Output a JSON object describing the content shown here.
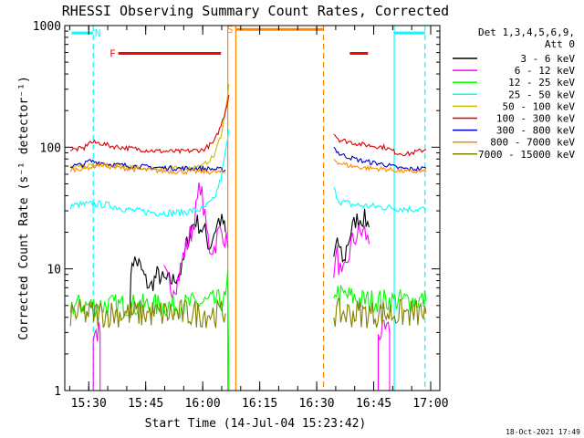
{
  "chart_data": {
    "type": "line",
    "title": "RHESSI Observing Summary Count Rates, Corrected",
    "xlabel": "Start Time (14-Jul-04 15:23:42)",
    "ylabel": "Corrected Count Rate (s⁻¹ detector⁻¹)",
    "yscale": "log",
    "ylim": [
      1,
      1000
    ],
    "xlim": [
      15.395,
      17.04
    ],
    "yticks": [
      {
        "v": 1,
        "label": "1"
      },
      {
        "v": 10,
        "label": "10"
      },
      {
        "v": 100,
        "label": "100"
      },
      {
        "v": 1000,
        "label": "1000"
      }
    ],
    "xticks": [
      {
        "v": 15.5,
        "label": "15:30"
      },
      {
        "v": 15.75,
        "label": "15:45"
      },
      {
        "v": 16.0,
        "label": "16:00"
      },
      {
        "v": 16.25,
        "label": "16:15"
      },
      {
        "v": 16.5,
        "label": "16:30"
      },
      {
        "v": 16.75,
        "label": "16:45"
      },
      {
        "v": 17.0,
        "label": "17:00"
      }
    ],
    "legend_header": [
      "Det 1,3,4,5,6,9,",
      "Att 0"
    ],
    "legend_position": "right",
    "timestamp": "18-Oct-2021 17:49",
    "series": [
      {
        "name": "3 - 6 keV",
        "color": "#000000",
        "segments": [
          [
            [
              15.68,
              5
            ],
            [
              15.69,
              12
            ],
            [
              15.72,
              11
            ],
            [
              15.75,
              8
            ],
            [
              15.77,
              7
            ],
            [
              15.8,
              9
            ],
            [
              15.83,
              8
            ],
            [
              15.87,
              8
            ],
            [
              15.89,
              9
            ],
            [
              15.91,
              10
            ],
            [
              15.93,
              16
            ],
            [
              15.95,
              22
            ],
            [
              15.97,
              25
            ],
            [
              15.99,
              22
            ],
            [
              16.01,
              20
            ],
            [
              16.03,
              15
            ],
            [
              16.05,
              20
            ],
            [
              16.07,
              25
            ],
            [
              16.09,
              24
            ],
            [
              16.1,
              20
            ]
          ],
          [
            [
              16.575,
              12
            ],
            [
              16.59,
              18
            ],
            [
              16.6,
              14
            ],
            [
              16.62,
              11
            ],
            [
              16.63,
              15
            ],
            [
              16.65,
              20
            ],
            [
              16.67,
              25
            ],
            [
              16.69,
              26
            ],
            [
              16.71,
              26
            ],
            [
              16.73,
              22
            ]
          ]
        ]
      },
      {
        "name": "6 - 12 keV",
        "color": "#ff00ff",
        "segments": [
          [
            [
              15.52,
              1
            ],
            [
              15.52,
              3
            ],
            [
              15.55,
              3
            ],
            [
              15.55,
              1
            ]
          ],
          [
            [
              15.83,
              9
            ],
            [
              15.86,
              7
            ],
            [
              15.89,
              8
            ],
            [
              15.92,
              14
            ],
            [
              15.95,
              20
            ],
            [
              15.97,
              30
            ],
            [
              15.99,
              50
            ],
            [
              16.01,
              25
            ],
            [
              16.03,
              15
            ],
            [
              16.05,
              15
            ],
            [
              16.07,
              20
            ],
            [
              16.09,
              20
            ],
            [
              16.11,
              15
            ]
          ],
          [
            [
              16.575,
              10
            ],
            [
              16.59,
              13
            ],
            [
              16.61,
              8
            ],
            [
              16.63,
              10
            ],
            [
              16.65,
              16
            ],
            [
              16.67,
              18
            ],
            [
              16.69,
              20
            ],
            [
              16.71,
              20
            ],
            [
              16.73,
              16
            ]
          ],
          [
            [
              16.77,
              1
            ],
            [
              16.77,
              3
            ],
            [
              16.82,
              3
            ],
            [
              16.82,
              1
            ]
          ]
        ]
      },
      {
        "name": "12 - 25 keV",
        "color": "#00ff00",
        "segments": [
          [
            [
              15.42,
              5
            ],
            [
              15.9,
              5
            ],
            [
              16.1,
              5.5
            ],
            [
              16.11,
              8
            ],
            [
              16.115,
              1
            ]
          ],
          [
            [
              16.575,
              5
            ],
            [
              16.58,
              7
            ],
            [
              16.6,
              6
            ],
            [
              16.63,
              6
            ],
            [
              16.7,
              5.5
            ],
            [
              16.98,
              5.5
            ]
          ]
        ]
      },
      {
        "name": "25 - 50 keV",
        "color": "#00ffff",
        "segments": [
          [
            [
              15.42,
              33
            ],
            [
              15.5,
              34
            ],
            [
              15.55,
              34
            ],
            [
              15.6,
              33
            ],
            [
              15.7,
              30
            ],
            [
              15.8,
              29
            ],
            [
              15.9,
              29
            ],
            [
              16.0,
              31
            ],
            [
              16.05,
              37
            ],
            [
              16.08,
              55
            ],
            [
              16.1,
              90
            ],
            [
              16.115,
              140
            ]
          ],
          [
            [
              16.575,
              45
            ],
            [
              16.6,
              36
            ],
            [
              16.65,
              34
            ],
            [
              16.7,
              33
            ],
            [
              16.8,
              32
            ],
            [
              16.9,
              31
            ],
            [
              16.98,
              31
            ]
          ]
        ]
      },
      {
        "name": "50 - 100 keV",
        "color": "#ccbb00",
        "segments": [
          [
            [
              15.42,
              68
            ],
            [
              15.5,
              70
            ],
            [
              15.55,
              72
            ],
            [
              15.6,
              70
            ],
            [
              15.7,
              68
            ],
            [
              15.8,
              67
            ],
            [
              15.9,
              67
            ],
            [
              16.0,
              70
            ],
            [
              16.05,
              85
            ],
            [
              16.08,
              125
            ],
            [
              16.1,
              200
            ],
            [
              16.115,
              330
            ]
          ]
        ]
      },
      {
        "name": "100 - 300 keV",
        "color": "#dd0000",
        "segments": [
          [
            [
              15.42,
              95
            ],
            [
              15.48,
              98
            ],
            [
              15.5,
              110
            ],
            [
              15.55,
              108
            ],
            [
              15.6,
              102
            ],
            [
              15.7,
              97
            ],
            [
              15.8,
              93
            ],
            [
              15.9,
              92
            ],
            [
              16.0,
              95
            ],
            [
              16.05,
              110
            ],
            [
              16.08,
              150
            ],
            [
              16.1,
              200
            ],
            [
              16.115,
              270
            ]
          ],
          [
            [
              16.575,
              130
            ],
            [
              16.6,
              115
            ],
            [
              16.65,
              110
            ],
            [
              16.7,
              105
            ],
            [
              16.8,
              100
            ],
            [
              16.85,
              90
            ],
            [
              16.9,
              88
            ],
            [
              16.98,
              96
            ]
          ]
        ]
      },
      {
        "name": "300 - 800 keV",
        "color": "#0000cc",
        "segments": [
          [
            [
              15.42,
              70
            ],
            [
              15.48,
              72
            ],
            [
              15.5,
              77
            ],
            [
              15.55,
              75
            ],
            [
              15.6,
              72
            ],
            [
              15.7,
              70
            ],
            [
              15.8,
              68
            ],
            [
              15.9,
              67
            ],
            [
              16.0,
              67
            ],
            [
              16.1,
              65
            ]
          ],
          [
            [
              16.575,
              100
            ],
            [
              16.6,
              88
            ],
            [
              16.65,
              82
            ],
            [
              16.7,
              77
            ],
            [
              16.8,
              72
            ],
            [
              16.85,
              68
            ],
            [
              16.9,
              66
            ],
            [
              16.98,
              67
            ]
          ]
        ]
      },
      {
        "name": "800 - 7000 keV",
        "color": "#ff8800",
        "segments": [
          [
            [
              15.42,
              65
            ],
            [
              15.5,
              68
            ],
            [
              15.55,
              72
            ],
            [
              15.6,
              69
            ],
            [
              15.7,
              66
            ],
            [
              15.8,
              64
            ],
            [
              15.9,
              63
            ],
            [
              16.0,
              63
            ],
            [
              16.1,
              62
            ]
          ],
          [
            [
              16.575,
              80
            ],
            [
              16.6,
              74
            ],
            [
              16.65,
              70
            ],
            [
              16.7,
              68
            ],
            [
              16.8,
              66
            ],
            [
              16.9,
              63
            ],
            [
              16.98,
              63
            ]
          ]
        ]
      },
      {
        "name": "7000 - 15000 keV",
        "color": "#808000",
        "segments": [
          [
            [
              15.42,
              4.3
            ],
            [
              15.9,
              4.3
            ],
            [
              16.1,
              4.3
            ]
          ],
          [
            [
              16.575,
              4.3
            ],
            [
              16.98,
              4.3
            ]
          ]
        ]
      }
    ],
    "flags": [
      {
        "label": "N",
        "color": "#00ffff",
        "bars": [
          [
            15.425,
            15.52
          ],
          [
            16.84,
            16.975
          ]
        ],
        "y": 870,
        "label_x": 15.54
      },
      {
        "label": "F",
        "color": "#ff0000",
        "bars": [
          [
            15.63,
            16.08
          ],
          [
            16.645,
            16.725
          ]
        ],
        "y": 590,
        "label_x": 15.605
      },
      {
        "label": "S",
        "color": "#ff8800",
        "bars": [
          [
            16.145,
            16.53
          ]
        ],
        "y": 930,
        "label_x": 16.12
      }
    ],
    "vlines": [
      {
        "x": 15.52,
        "color": "#00ffff",
        "dash": true
      },
      {
        "x": 16.11,
        "color": "#ff8800",
        "dash": false
      },
      {
        "x": 16.145,
        "color": "#ff8800",
        "dash": false
      },
      {
        "x": 16.53,
        "color": "#ff8800",
        "dash": true
      },
      {
        "x": 16.84,
        "color": "#00ffff",
        "dash": false
      },
      {
        "x": 16.975,
        "color": "#00ffff",
        "dash": true
      }
    ]
  }
}
